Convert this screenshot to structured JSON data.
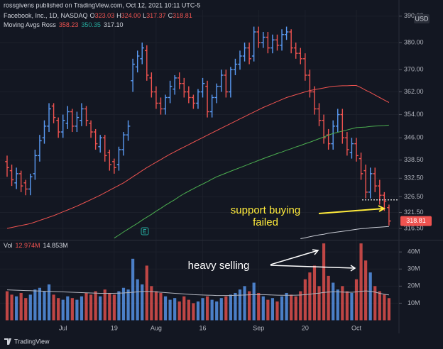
{
  "header": {
    "publisher": "rossgivens published on TradingView.com, Oct 12, 2021 10:11 UTC-5",
    "symbol": "Facebook, Inc., 1D, NASDAQ",
    "ohlc": [
      {
        "label": "O",
        "value": "323.03"
      },
      {
        "label": "H",
        "value": "324.00"
      },
      {
        "label": "L",
        "value": "317.37"
      },
      {
        "label": "C",
        "value": "318.81"
      }
    ],
    "ma_name": "Moving Avgs Ross",
    "ma_values": [
      "358.23",
      "350.35",
      "317.10"
    ],
    "vol_name": "Vol",
    "vol_values": [
      "12.974M",
      "14.853M"
    ]
  },
  "chart_data": [
    {
      "type": "ohlc",
      "log": true,
      "grid": true,
      "currency": "USD",
      "up_color": "#5b9cf6",
      "down_color": "#ef5350",
      "categories": [
        null,
        null,
        null,
        null,
        null,
        null,
        null,
        null,
        null,
        null,
        null,
        null,
        "Jul",
        null,
        null,
        null,
        null,
        null,
        null,
        null,
        null,
        null,
        null,
        "19",
        null,
        null,
        null,
        null,
        null,
        null,
        null,
        null,
        "Aug",
        null,
        null,
        null,
        null,
        null,
        null,
        null,
        null,
        null,
        "16",
        null,
        null,
        null,
        null,
        null,
        null,
        null,
        null,
        null,
        null,
        null,
        "Sep",
        null,
        null,
        null,
        null,
        null,
        null,
        null,
        null,
        null,
        "20",
        null,
        null,
        null,
        null,
        null,
        null,
        null,
        null,
        null,
        null,
        "Oct",
        null,
        null,
        null,
        null,
        null,
        null,
        null
      ],
      "open": [
        338,
        335,
        331,
        334,
        331,
        329,
        334,
        340,
        346,
        350,
        357,
        352,
        348,
        351,
        355,
        350,
        352,
        356,
        351,
        348,
        343,
        346,
        341,
        338,
        337,
        342,
        347,
        366,
        371,
        374,
        377,
        367,
        362,
        358,
        356,
        360,
        363,
        367,
        365,
        362,
        360,
        358,
        362,
        364,
        355,
        360,
        364,
        368,
        362,
        370,
        372,
        375,
        378,
        375,
        384,
        380,
        382,
        378,
        381,
        379,
        383,
        384,
        378,
        376,
        374,
        368,
        362,
        356,
        352,
        347,
        344,
        350,
        354,
        346,
        341,
        344,
        339,
        335,
        328,
        334,
        330,
        327,
        323.03
      ],
      "high": [
        340,
        337,
        336,
        335,
        332,
        334,
        342,
        347,
        352,
        358,
        358,
        353,
        354,
        357,
        356,
        355,
        358,
        357,
        352,
        349,
        347,
        347,
        342,
        339,
        343,
        348,
        352,
        374,
        377,
        380,
        379,
        369,
        364,
        360,
        361,
        366,
        368,
        369,
        367,
        364,
        361,
        363,
        367,
        366,
        361,
        365,
        370,
        370,
        371,
        374,
        377,
        380,
        380,
        386,
        386,
        384,
        384,
        383,
        383,
        385,
        386,
        385,
        380,
        378,
        376,
        370,
        364,
        358,
        354,
        349,
        352,
        356,
        356,
        348,
        346,
        346,
        341,
        337,
        336,
        336,
        332,
        328,
        324
      ],
      "low": [
        333,
        330,
        329,
        328,
        327,
        327,
        332,
        338,
        344,
        348,
        351,
        346,
        346,
        349,
        348,
        348,
        350,
        350,
        346,
        342,
        341,
        338,
        335,
        334,
        335,
        340,
        345,
        362,
        369,
        372,
        366,
        360,
        356,
        354,
        354,
        358,
        361,
        363,
        360,
        358,
        356,
        356,
        360,
        353,
        353,
        358,
        362,
        360,
        360,
        368,
        370,
        373,
        372,
        373,
        378,
        378,
        376,
        376,
        377,
        377,
        381,
        376,
        374,
        372,
        366,
        360,
        354,
        350,
        344,
        342,
        342,
        348,
        344,
        340,
        339,
        338,
        332,
        326,
        326,
        328,
        324,
        322,
        317.37
      ],
      "close": [
        336,
        332,
        334,
        330,
        329,
        333,
        340,
        345,
        350,
        356,
        353,
        348,
        352,
        355,
        350,
        353,
        356,
        352,
        348,
        344,
        346,
        340,
        337,
        336,
        342,
        347,
        350,
        372,
        375,
        378,
        368,
        362,
        358,
        356,
        360,
        364,
        367,
        365,
        362,
        360,
        358,
        362,
        365,
        355,
        360,
        364,
        368,
        362,
        370,
        372,
        375,
        378,
        374,
        384,
        380,
        382,
        378,
        381,
        379,
        383,
        384,
        378,
        376,
        374,
        368,
        362,
        356,
        352,
        346,
        344,
        350,
        354,
        346,
        342,
        344,
        340,
        334,
        328,
        334,
        330,
        327,
        325,
        318.81
      ],
      "series": [
        {
          "color": "#ef5350",
          "values": [
            316.5,
            316.8,
            317.1,
            317.4,
            317.7,
            318,
            318.5,
            319,
            319.5,
            320,
            320.5,
            321.1,
            321.7,
            322.3,
            322.9,
            323.5,
            324.2,
            324.9,
            325.6,
            326.3,
            327,
            327.8,
            328.6,
            329.4,
            330.2,
            331,
            332,
            333,
            334,
            335,
            336,
            336.9,
            337.8,
            338.7,
            339.6,
            340.5,
            341.3,
            342.1,
            342.9,
            343.7,
            344.5,
            345.3,
            346.1,
            346.9,
            347.7,
            348.5,
            349.3,
            350.1,
            350.9,
            351.7,
            352.5,
            353.3,
            354.1,
            354.9,
            355.7,
            356.5,
            357.2,
            357.9,
            358.6,
            359.3,
            360,
            360.5,
            361,
            361.5,
            362,
            362.5,
            362.8,
            363.1,
            363.4,
            363.7,
            364,
            364.1,
            364.2,
            364.2,
            364.3,
            364.3,
            363.5,
            362.6,
            361.8,
            360.9,
            360,
            359.1,
            358.23
          ]
        },
        {
          "color": "#4caf50",
          "values": [
            null,
            null,
            null,
            null,
            null,
            null,
            null,
            null,
            null,
            null,
            null,
            null,
            null,
            null,
            null,
            null,
            null,
            null,
            null,
            null,
            null,
            null,
            null,
            313.5,
            314.4,
            315.4,
            316.3,
            317.2,
            318.1,
            319.1,
            320,
            320.9,
            321.9,
            322.8,
            323.8,
            324.7,
            325.6,
            326.6,
            327.5,
            328.3,
            329.1,
            329.9,
            330.6,
            331.4,
            332.2,
            333,
            333.6,
            334.2,
            334.8,
            335.4,
            336,
            336.6,
            337.2,
            337.8,
            338.4,
            339,
            339.6,
            340.1,
            340.7,
            341.2,
            341.8,
            342.3,
            342.9,
            343.4,
            344,
            344.5,
            345.1,
            345.7,
            346.3,
            346.9,
            347.5,
            347.9,
            348.3,
            348.7,
            349.1,
            349.5,
            349.6,
            349.7,
            349.9,
            350,
            350.1,
            350.2,
            350.35
          ]
        },
        {
          "color": "#c8cbd4",
          "values": [
            null,
            null,
            null,
            null,
            null,
            null,
            null,
            null,
            null,
            null,
            null,
            null,
            null,
            null,
            null,
            null,
            null,
            null,
            null,
            null,
            null,
            null,
            null,
            null,
            null,
            null,
            null,
            null,
            null,
            null,
            null,
            null,
            null,
            null,
            null,
            null,
            null,
            null,
            null,
            null,
            null,
            null,
            null,
            null,
            null,
            null,
            null,
            null,
            null,
            null,
            null,
            null,
            null,
            null,
            null,
            null,
            null,
            null,
            null,
            null,
            null,
            null,
            null,
            313.3,
            313.6,
            313.9,
            314.2,
            314.5,
            314.7,
            315,
            315.2,
            315.4,
            315.6,
            315.8,
            316,
            316.2,
            316.4,
            316.5,
            316.7,
            316.8,
            316.9,
            317,
            317.1
          ]
        }
      ],
      "support_level": 325.5,
      "annotations": [
        {
          "lines": [
            "support buying",
            "failed"
          ],
          "color": "#ffeb3b"
        },
        {
          "lines": [
            "heavy selling"
          ],
          "color": "#ffffff"
        }
      ],
      "ylim": [
        313.2,
        392.4
      ],
      "yticks": [
        {
          "value": 390,
          "label": "390.00"
        },
        {
          "value": 380,
          "label": "380.00"
        },
        {
          "value": 370,
          "label": "370.00"
        },
        {
          "value": 362,
          "label": "362.00"
        },
        {
          "value": 354,
          "label": "354.00"
        },
        {
          "value": 346,
          "label": "346.00"
        },
        {
          "value": 338.5,
          "label": "338.50"
        },
        {
          "value": 332.5,
          "label": "332.50"
        },
        {
          "value": 326.5,
          "label": "326.50"
        },
        {
          "value": 321.5,
          "label": "321.50"
        },
        {
          "value": 316.5,
          "label": "316.50"
        }
      ]
    },
    {
      "type": "bar",
      "grid": true,
      "values": [
        17,
        15,
        14,
        16,
        13,
        15,
        18,
        19,
        17,
        21,
        15,
        13,
        12,
        14,
        13,
        12,
        14,
        16,
        15,
        17,
        14,
        18,
        16,
        15,
        17,
        19,
        18,
        36,
        24,
        21,
        32,
        20,
        17,
        16,
        14,
        12,
        13,
        11,
        14,
        12,
        10,
        11,
        13,
        14,
        12,
        11,
        13,
        14,
        15,
        16,
        18,
        20,
        17,
        22,
        16,
        14,
        12,
        13,
        11,
        14,
        16,
        15,
        14,
        17,
        24,
        28,
        32,
        20,
        45,
        26,
        22,
        18,
        20,
        17,
        16,
        24,
        45,
        35,
        28,
        20,
        17,
        15,
        12.974
      ],
      "series": [
        {
          "color": "#b2b5be",
          "values": [
            17.8,
            17.7,
            17.6,
            17.5,
            17.4,
            17.3,
            17.2,
            17.1,
            17,
            16.9,
            16.8,
            16.7,
            16.6,
            16.5,
            16.4,
            16.3,
            16.2,
            16.1,
            16,
            15.9,
            15.8,
            15.8,
            15.8,
            15.8,
            15.9,
            16,
            16.2,
            16.4,
            16.6,
            16.8,
            16.9,
            16.8,
            16.6,
            16.4,
            16.2,
            16,
            15.8,
            15.6,
            15.4,
            15.2,
            15,
            14.9,
            14.8,
            14.7,
            14.6,
            14.5,
            14.5,
            14.5,
            14.5,
            14.6,
            14.7,
            14.8,
            14.9,
            15,
            15,
            15,
            14.9,
            14.8,
            14.7,
            14.6,
            14.6,
            14.6,
            14.7,
            14.8,
            15,
            15.3,
            15.6,
            15.9,
            16.3,
            16.5,
            16.6,
            16.6,
            16.5,
            16.4,
            16.4,
            16.6,
            17,
            17.2,
            17,
            16.5,
            15.8,
            15.2,
            14.853
          ]
        }
      ],
      "ylim": [
        0,
        46.3
      ],
      "yticks": [
        {
          "value": 40,
          "label": "40M"
        },
        {
          "value": 30,
          "label": "30M"
        },
        {
          "value": 20,
          "label": "20M"
        },
        {
          "value": 10,
          "label": "10M"
        }
      ]
    }
  ],
  "footer": {
    "logo": "TradingView"
  }
}
